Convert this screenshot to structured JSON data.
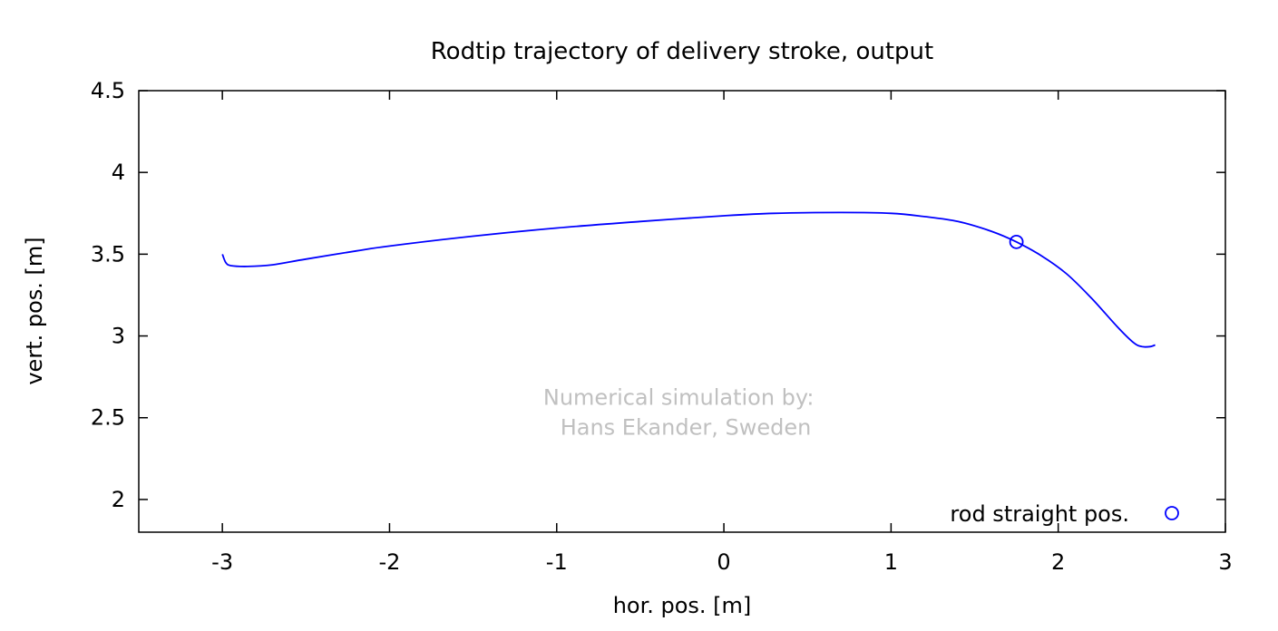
{
  "chart_data": {
    "type": "line",
    "title": "Rodtip trajectory of delivery stroke, output",
    "xlabel": "hor. pos. [m]",
    "ylabel": "vert. pos. [m]",
    "xlim": [
      -3.5,
      3
    ],
    "ylim": [
      1.8,
      4.5
    ],
    "xticks": [
      -3,
      -2,
      -1,
      0,
      1,
      2,
      3
    ],
    "yticks": [
      2,
      2.5,
      3,
      3.5,
      4,
      4.5
    ],
    "xtick_labels": [
      "-3",
      "-2",
      "-1",
      "0",
      "1",
      "2",
      "3"
    ],
    "ytick_labels": [
      "2",
      "2.5",
      "3",
      "3.5",
      "4",
      "4.5"
    ],
    "grid": false,
    "colors": {
      "series": "#0000ff",
      "axes": "#000000",
      "watermark": "#c0c0c0"
    },
    "series": [
      {
        "values": [
          [
            -3.0,
            3.5
          ],
          [
            -2.98,
            3.45
          ],
          [
            -2.95,
            3.43
          ],
          [
            -2.85,
            3.425
          ],
          [
            -2.7,
            3.435
          ],
          [
            -2.5,
            3.47
          ],
          [
            -2.2,
            3.52
          ],
          [
            -2.0,
            3.55
          ],
          [
            -1.5,
            3.61
          ],
          [
            -1.0,
            3.66
          ],
          [
            -0.5,
            3.7
          ],
          [
            0.0,
            3.735
          ],
          [
            0.3,
            3.75
          ],
          [
            0.7,
            3.755
          ],
          [
            1.0,
            3.75
          ],
          [
            1.2,
            3.73
          ],
          [
            1.4,
            3.7
          ],
          [
            1.6,
            3.64
          ],
          [
            1.75,
            3.575
          ],
          [
            1.9,
            3.49
          ],
          [
            2.05,
            3.38
          ],
          [
            2.2,
            3.23
          ],
          [
            2.35,
            3.06
          ],
          [
            2.45,
            2.96
          ],
          [
            2.5,
            2.935
          ],
          [
            2.55,
            2.935
          ],
          [
            2.58,
            2.945
          ]
        ]
      }
    ],
    "markers": [
      {
        "label": "rod straight pos.",
        "point": [
          1.75,
          3.575
        ]
      }
    ],
    "legend": {
      "position": "bottom-right",
      "label": "rod straight pos."
    },
    "annotation": {
      "lines": [
        "Numerical simulation by:",
        "Hans Ekander, Sweden"
      ],
      "anchor": [
        -0.25,
        2.58
      ]
    }
  }
}
